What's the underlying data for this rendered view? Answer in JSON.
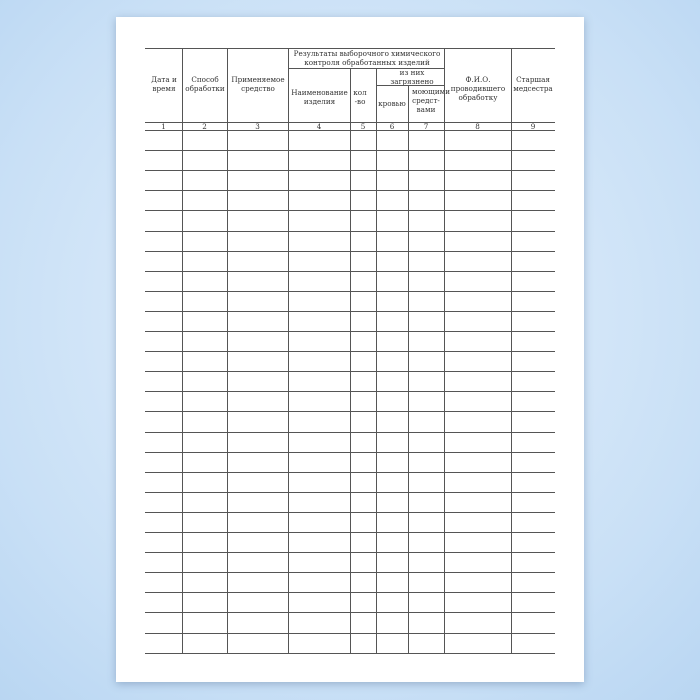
{
  "form": {
    "headers": {
      "date_time": "Дата и время",
      "method": "Способ обработки",
      "agent": "Применяемое средство",
      "results_group": "Результаты выборочного химического контроля обработанных изделий",
      "item_name": "Наименование изделия",
      "quantity": "кол-во",
      "contaminated_group": "из них загрязнено",
      "blood": "кровью",
      "detergents": "моющими средст-вами",
      "performer": "Ф.И.О. проводившего обработку",
      "head_nurse": "Старшая медсестра"
    },
    "column_numbers": [
      "1",
      "2",
      "3",
      "4",
      "5",
      "6",
      "7",
      "8",
      "9"
    ],
    "empty_rows": 26
  }
}
